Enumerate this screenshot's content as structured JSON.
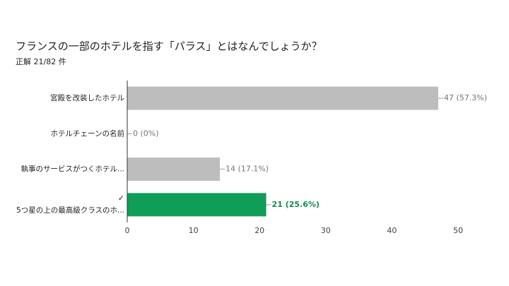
{
  "chart_data": {
    "type": "bar",
    "orientation": "horizontal",
    "title": "フランスの一部のホテルを指す「パラス」とはなんでしょうか？",
    "subtitle": "正解 21/82 件",
    "categories": [
      "宮殿を改装したホテル",
      "ホテルチェーンの名前",
      "執事のサービスがつくホテル...",
      "5つ星の上の最高級クラスのホ..."
    ],
    "values": [
      47,
      0,
      14,
      21
    ],
    "value_labels": [
      "47 (57.3%)",
      "0 (0%)",
      "14 (17.1%)",
      "21 (25.6%)"
    ],
    "colors": [
      "#bdbdbd",
      "#bdbdbd",
      "#bdbdbd",
      "#0f9d58"
    ],
    "value_label_colors": [
      "#757575",
      "#757575",
      "#757575",
      "#0f8a4d"
    ],
    "correct_marks": [
      null,
      null,
      null,
      "✓"
    ],
    "xlim": [
      0,
      50
    ],
    "xticks": [
      0,
      10,
      20,
      30,
      40,
      50
    ],
    "grid": false
  }
}
